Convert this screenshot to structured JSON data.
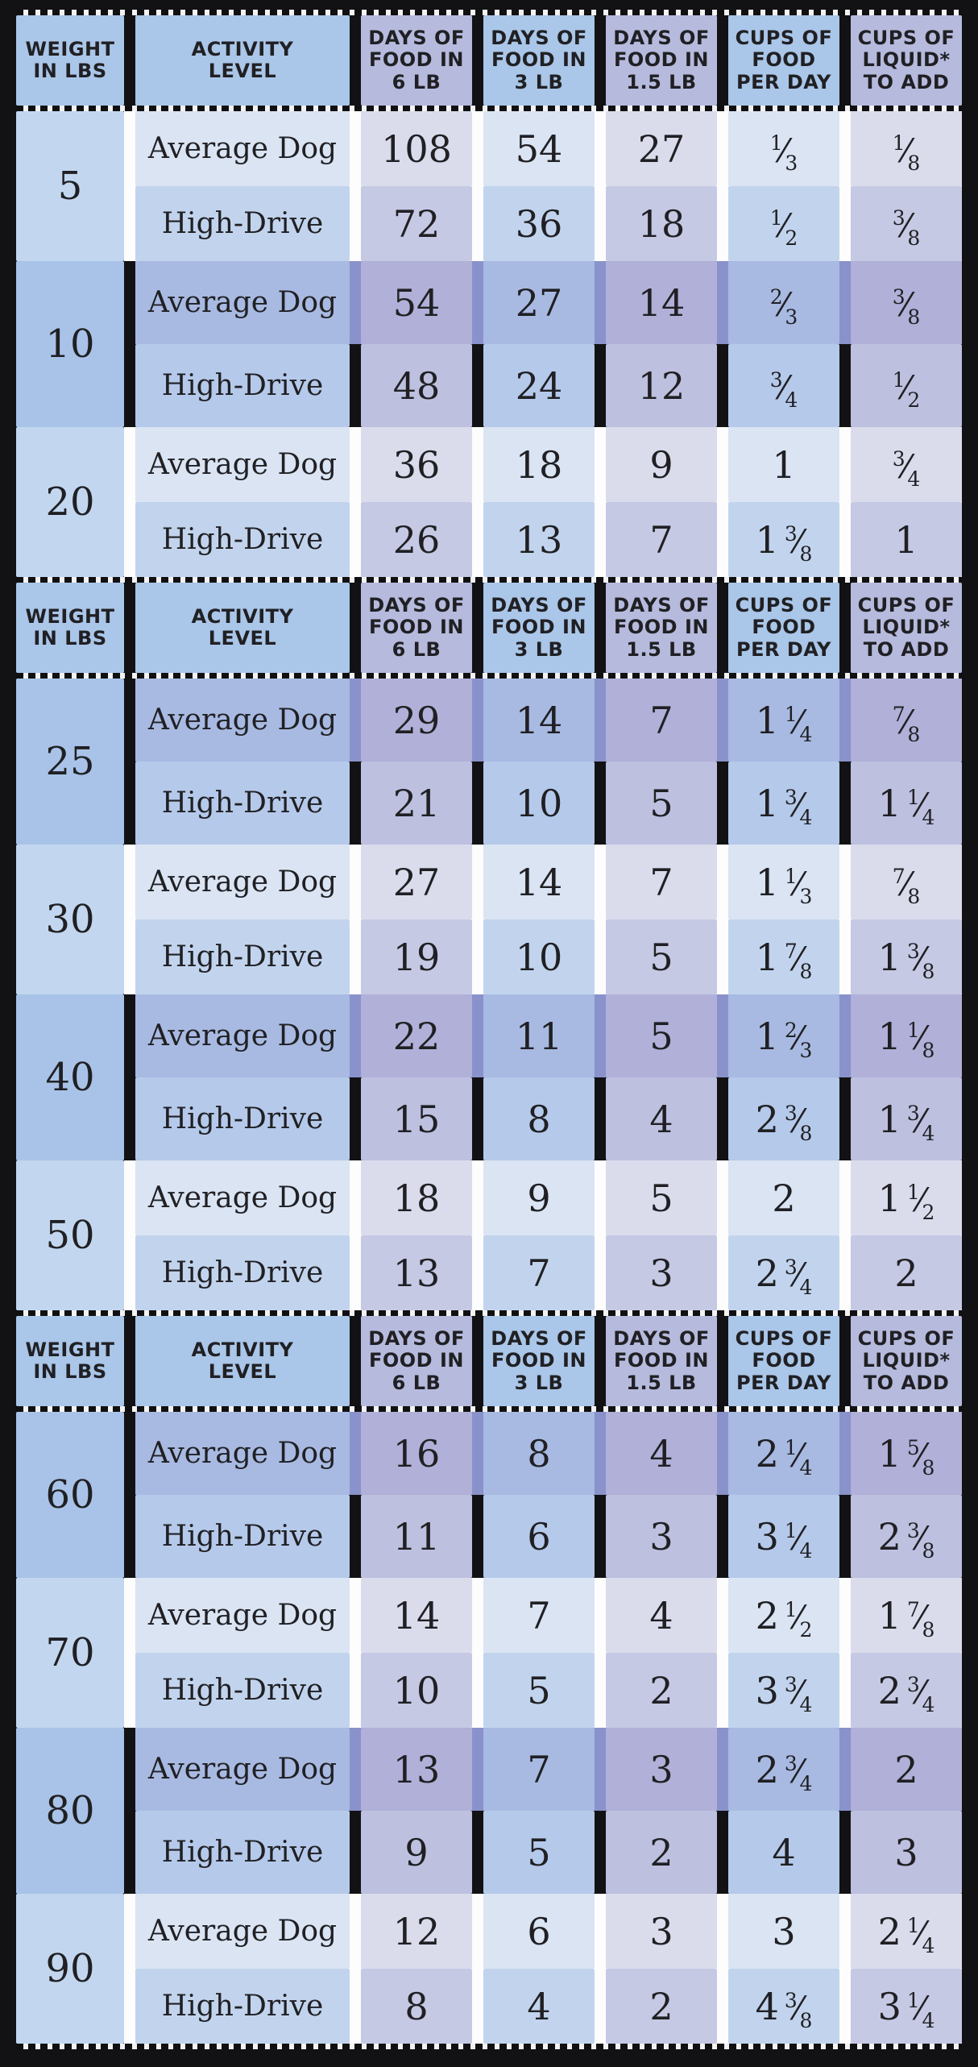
{
  "colors": {
    "background": "#121214",
    "header_blue": "#aac6e8",
    "header_lavender": "#b6badd",
    "light_group_weight": "#c2d7ef",
    "dark_group_weight": "#a8c3e7",
    "gap_white": "#fdfdfd",
    "gap_periwinkle": "#8a92cb",
    "text_ink": "#202024"
  },
  "chart_data": {
    "type": "table",
    "columns": [
      "WEIGHT\nIN LBS",
      "ACTIVITY\nLEVEL",
      "DAYS OF\nFOOD IN\n6 LB",
      "DAYS OF\nFOOD IN\n3 LB",
      "DAYS OF\nFOOD IN\n1.5 LB",
      "CUPS OF\nFOOD\nPER DAY",
      "CUPS OF\nLIQUID*\nTO ADD"
    ],
    "activity_levels": [
      "Average Dog",
      "High-Drive"
    ],
    "sections": [
      {
        "groups": [
          {
            "weight": "5",
            "tone": "light",
            "rows": [
              {
                "activity": "Average Dog",
                "values": [
                  "108",
                  "54",
                  "27",
                  "1/3",
                  "1/8"
                ]
              },
              {
                "activity": "High-Drive",
                "values": [
                  "72",
                  "36",
                  "18",
                  "1/2",
                  "3/8"
                ]
              }
            ]
          },
          {
            "weight": "10",
            "tone": "dark",
            "rows": [
              {
                "activity": "Average Dog",
                "values": [
                  "54",
                  "27",
                  "14",
                  "2/3",
                  "3/8"
                ]
              },
              {
                "activity": "High-Drive",
                "values": [
                  "48",
                  "24",
                  "12",
                  "3/4",
                  "1/2"
                ]
              }
            ]
          },
          {
            "weight": "20",
            "tone": "light",
            "rows": [
              {
                "activity": "Average Dog",
                "values": [
                  "36",
                  "18",
                  "9",
                  "1",
                  "3/4"
                ]
              },
              {
                "activity": "High-Drive",
                "values": [
                  "26",
                  "13",
                  "7",
                  "1 3/8",
                  "1"
                ]
              }
            ]
          }
        ]
      },
      {
        "groups": [
          {
            "weight": "25",
            "tone": "dark",
            "rows": [
              {
                "activity": "Average Dog",
                "values": [
                  "29",
                  "14",
                  "7",
                  "1 1/4",
                  "7/8"
                ]
              },
              {
                "activity": "High-Drive",
                "values": [
                  "21",
                  "10",
                  "5",
                  "1 3/4",
                  "1 1/4"
                ]
              }
            ]
          },
          {
            "weight": "30",
            "tone": "light",
            "rows": [
              {
                "activity": "Average Dog",
                "values": [
                  "27",
                  "14",
                  "7",
                  "1 1/3",
                  "7/8"
                ]
              },
              {
                "activity": "High-Drive",
                "values": [
                  "19",
                  "10",
                  "5",
                  "1 7/8",
                  "1 3/8"
                ]
              }
            ]
          },
          {
            "weight": "40",
            "tone": "dark",
            "rows": [
              {
                "activity": "Average Dog",
                "values": [
                  "22",
                  "11",
                  "5",
                  "1 2/3",
                  "1 1/8"
                ]
              },
              {
                "activity": "High-Drive",
                "values": [
                  "15",
                  "8",
                  "4",
                  "2 3/8",
                  "1 3/4"
                ]
              }
            ]
          },
          {
            "weight": "50",
            "tone": "light",
            "rows": [
              {
                "activity": "Average Dog",
                "values": [
                  "18",
                  "9",
                  "5",
                  "2",
                  "1 1/2"
                ]
              },
              {
                "activity": "High-Drive",
                "values": [
                  "13",
                  "7",
                  "3",
                  "2 3/4",
                  "2"
                ]
              }
            ]
          }
        ]
      },
      {
        "groups": [
          {
            "weight": "60",
            "tone": "dark",
            "rows": [
              {
                "activity": "Average Dog",
                "values": [
                  "16",
                  "8",
                  "4",
                  "2 1/4",
                  "1 5/8"
                ]
              },
              {
                "activity": "High-Drive",
                "values": [
                  "11",
                  "6",
                  "3",
                  "3 1/4",
                  "2 3/8"
                ]
              }
            ]
          },
          {
            "weight": "70",
            "tone": "light",
            "rows": [
              {
                "activity": "Average Dog",
                "values": [
                  "14",
                  "7",
                  "4",
                  "2 1/2",
                  "1 7/8"
                ]
              },
              {
                "activity": "High-Drive",
                "values": [
                  "10",
                  "5",
                  "2",
                  "3 3/4",
                  "2 3/4"
                ]
              }
            ]
          },
          {
            "weight": "80",
            "tone": "dark",
            "rows": [
              {
                "activity": "Average Dog",
                "values": [
                  "13",
                  "7",
                  "3",
                  "2 3/4",
                  "2"
                ]
              },
              {
                "activity": "High-Drive",
                "values": [
                  "9",
                  "5",
                  "2",
                  "4",
                  "3"
                ]
              }
            ]
          },
          {
            "weight": "90",
            "tone": "light",
            "rows": [
              {
                "activity": "Average Dog",
                "values": [
                  "12",
                  "6",
                  "3",
                  "3",
                  "2 1/4"
                ]
              },
              {
                "activity": "High-Drive",
                "values": [
                  "8",
                  "4",
                  "2",
                  "4 3/8",
                  "3 1/4"
                ]
              }
            ]
          }
        ]
      }
    ]
  }
}
